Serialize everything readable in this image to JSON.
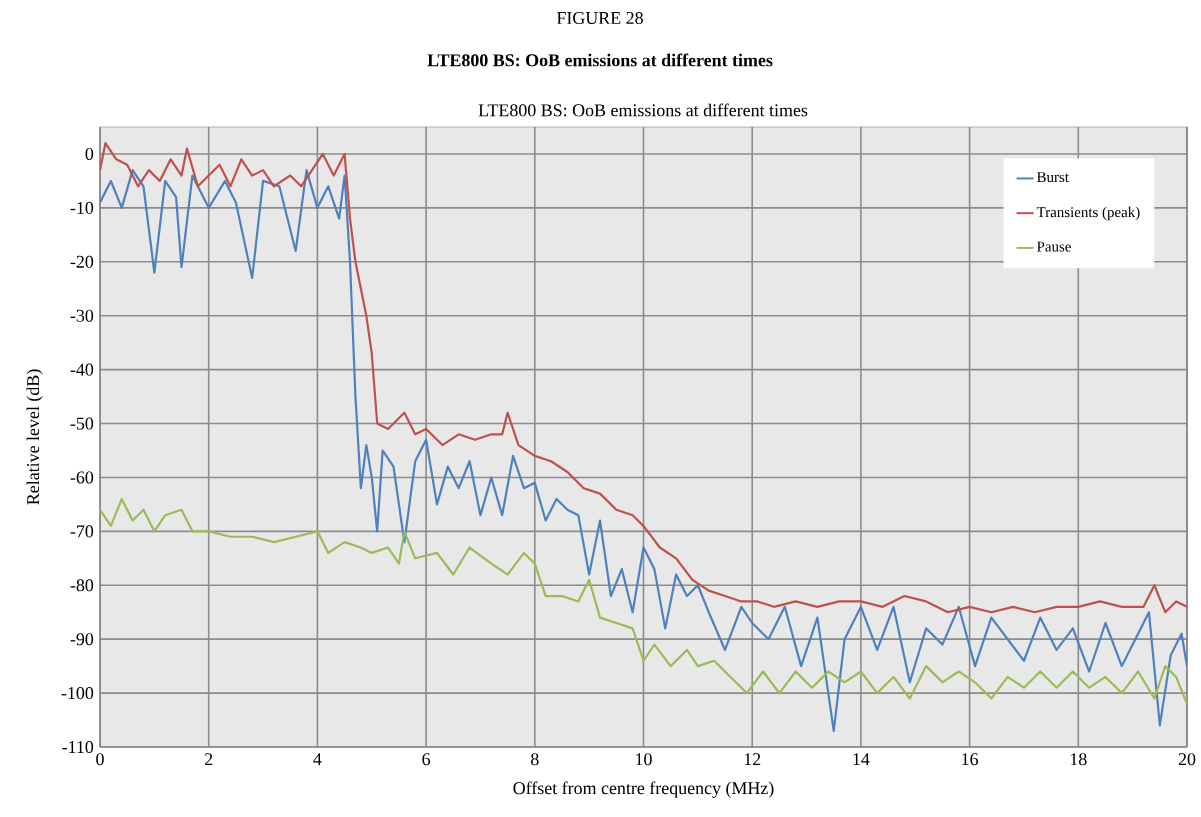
{
  "chart_data": {
    "type": "line",
    "title": "FIGURE 28",
    "subtitle": "LTE800 BS: OoB emissions at different times",
    "annotations": [
      "LTE800 BS: OoB emissions at different times"
    ],
    "xlabel": "Offset from centre frequency (MHz)",
    "ylabel": "Relative level (dB)",
    "xlim": [
      0,
      20
    ],
    "ylim": [
      -110,
      5
    ],
    "xticks": [
      0,
      2,
      4,
      6,
      8,
      10,
      12,
      14,
      16,
      18,
      20
    ],
    "yticks": [
      -110,
      -100,
      -90,
      -80,
      -70,
      -60,
      -50,
      -40,
      -30,
      -20,
      -10,
      0
    ],
    "grid": true,
    "legend": "top right",
    "marker": "none",
    "line_style": "solid",
    "series": [
      {
        "name": "Burst",
        "color": "#4f81bd",
        "x": [
          0,
          0.2,
          0.4,
          0.6,
          0.8,
          1.0,
          1.2,
          1.4,
          1.5,
          1.7,
          2.0,
          2.3,
          2.5,
          2.8,
          3.0,
          3.3,
          3.6,
          3.8,
          4.0,
          4.2,
          4.4,
          4.5,
          4.6,
          4.7,
          4.8,
          4.9,
          5.0,
          5.1,
          5.2,
          5.4,
          5.6,
          5.8,
          6.0,
          6.2,
          6.4,
          6.6,
          6.8,
          7.0,
          7.2,
          7.4,
          7.6,
          7.8,
          8.0,
          8.2,
          8.4,
          8.6,
          8.8,
          9.0,
          9.2,
          9.4,
          9.6,
          9.8,
          10.0,
          10.2,
          10.4,
          10.6,
          10.8,
          11.0,
          11.2,
          11.5,
          11.8,
          12.0,
          12.3,
          12.6,
          12.9,
          13.2,
          13.5,
          13.7,
          14.0,
          14.3,
          14.6,
          14.9,
          15.2,
          15.5,
          15.8,
          16.1,
          16.4,
          16.7,
          17.0,
          17.3,
          17.6,
          17.9,
          18.2,
          18.5,
          18.8,
          19.0,
          19.3,
          19.5,
          19.7,
          19.9,
          20
        ],
        "values": [
          -9,
          -5,
          -10,
          -3,
          -6,
          -22,
          -5,
          -8,
          -21,
          -4,
          -10,
          -5,
          -9,
          -23,
          -5,
          -6,
          -18,
          -3,
          -10,
          -6,
          -12,
          -4,
          -20,
          -45,
          -62,
          -54,
          -60,
          -70,
          -55,
          -58,
          -72,
          -57,
          -53,
          -65,
          -58,
          -62,
          -57,
          -67,
          -60,
          -67,
          -56,
          -62,
          -61,
          -68,
          -64,
          -66,
          -67,
          -78,
          -68,
          -82,
          -77,
          -85,
          -73,
          -77,
          -88,
          -78,
          -82,
          -80,
          -85,
          -92,
          -84,
          -87,
          -90,
          -84,
          -95,
          -86,
          -107,
          -90,
          -84,
          -92,
          -84,
          -98,
          -88,
          -91,
          -84,
          -95,
          -86,
          -90,
          -94,
          -86,
          -92,
          -88,
          -96,
          -87,
          -95,
          -91,
          -85,
          -106,
          -93,
          -89,
          -95
        ]
      },
      {
        "name": "Transients (peak)",
        "color": "#c0504d",
        "x": [
          0,
          0.1,
          0.3,
          0.5,
          0.7,
          0.9,
          1.1,
          1.3,
          1.5,
          1.6,
          1.8,
          2.0,
          2.2,
          2.4,
          2.6,
          2.8,
          3.0,
          3.2,
          3.5,
          3.7,
          3.9,
          4.1,
          4.3,
          4.5,
          4.6,
          4.7,
          4.8,
          4.9,
          5.0,
          5.1,
          5.3,
          5.6,
          5.8,
          6.0,
          6.3,
          6.6,
          6.9,
          7.2,
          7.4,
          7.5,
          7.7,
          8.0,
          8.3,
          8.6,
          8.9,
          9.2,
          9.5,
          9.8,
          10.0,
          10.3,
          10.6,
          10.9,
          11.2,
          11.5,
          11.8,
          12.1,
          12.4,
          12.8,
          13.2,
          13.6,
          14.0,
          14.4,
          14.8,
          15.2,
          15.6,
          16.0,
          16.4,
          16.8,
          17.2,
          17.6,
          18.0,
          18.4,
          18.8,
          19.2,
          19.4,
          19.6,
          19.8,
          20
        ],
        "values": [
          -3,
          2,
          -1,
          -2,
          -6,
          -3,
          -5,
          -1,
          -4,
          1,
          -6,
          -4,
          -2,
          -6,
          -1,
          -4,
          -3,
          -6,
          -4,
          -6,
          -3,
          0,
          -4,
          0,
          -12,
          -20,
          -25,
          -30,
          -37,
          -50,
          -51,
          -48,
          -52,
          -51,
          -54,
          -52,
          -53,
          -52,
          -52,
          -48,
          -54,
          -56,
          -57,
          -59,
          -62,
          -63,
          -66,
          -67,
          -69,
          -73,
          -75,
          -79,
          -81,
          -82,
          -83,
          -83,
          -84,
          -83,
          -84,
          -83,
          -83,
          -84,
          -82,
          -83,
          -85,
          -84,
          -85,
          -84,
          -85,
          -84,
          -84,
          -83,
          -84,
          -84,
          -80,
          -85,
          -83,
          -84
        ]
      },
      {
        "name": "Pause",
        "color": "#9bbb59",
        "x": [
          0,
          0.2,
          0.4,
          0.6,
          0.8,
          1.0,
          1.2,
          1.5,
          1.7,
          2.0,
          2.4,
          2.8,
          3.2,
          3.6,
          4.0,
          4.2,
          4.5,
          4.8,
          5.0,
          5.3,
          5.5,
          5.6,
          5.8,
          6.2,
          6.5,
          6.8,
          7.2,
          7.5,
          7.8,
          8.0,
          8.2,
          8.5,
          8.8,
          9.0,
          9.2,
          9.5,
          9.8,
          10.0,
          10.2,
          10.5,
          10.8,
          11.0,
          11.3,
          11.6,
          11.9,
          12.2,
          12.5,
          12.8,
          13.1,
          13.4,
          13.7,
          14.0,
          14.3,
          14.6,
          14.9,
          15.2,
          15.5,
          15.8,
          16.1,
          16.4,
          16.7,
          17.0,
          17.3,
          17.6,
          17.9,
          18.2,
          18.5,
          18.8,
          19.1,
          19.4,
          19.6,
          19.8,
          20
        ],
        "values": [
          -66,
          -69,
          -64,
          -68,
          -66,
          -70,
          -67,
          -66,
          -70,
          -70,
          -71,
          -71,
          -72,
          -71,
          -70,
          -74,
          -72,
          -73,
          -74,
          -73,
          -76,
          -70,
          -75,
          -74,
          -78,
          -73,
          -76,
          -78,
          -74,
          -76,
          -82,
          -82,
          -83,
          -79,
          -86,
          -87,
          -88,
          -94,
          -91,
          -95,
          -92,
          -95,
          -94,
          -97,
          -100,
          -96,
          -100,
          -96,
          -99,
          -96,
          -98,
          -96,
          -100,
          -97,
          -101,
          -95,
          -98,
          -96,
          -98,
          -101,
          -97,
          -99,
          -96,
          -99,
          -96,
          -99,
          -97,
          -100,
          -96,
          -101,
          -95,
          -97,
          -102
        ]
      }
    ]
  }
}
